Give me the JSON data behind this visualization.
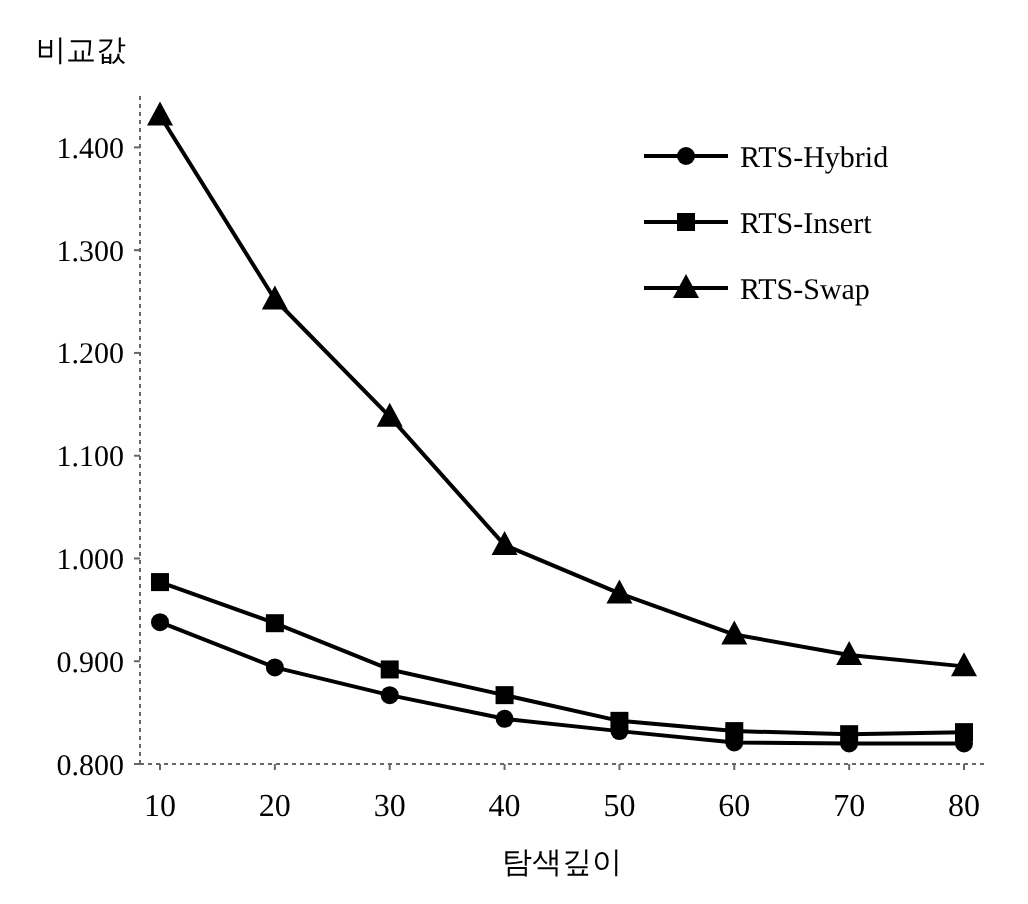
{
  "chart_data": {
    "type": "line",
    "ylabel": "비교값",
    "xlabel": "탐색깊이",
    "categories": [
      "10",
      "20",
      "30",
      "40",
      "50",
      "60",
      "70",
      "80"
    ],
    "series": [
      {
        "name": "RTS-Hybrid",
        "color": "#000000",
        "marker": "circle",
        "values": [
          0.938,
          0.894,
          0.867,
          0.844,
          0.832,
          0.821,
          0.82,
          0.82
        ]
      },
      {
        "name": "RTS-Insert",
        "color": "#000000",
        "marker": "square",
        "values": [
          0.977,
          0.937,
          0.892,
          0.867,
          0.842,
          0.832,
          0.829,
          0.831
        ]
      },
      {
        "name": "RTS-Swap",
        "color": "#000000",
        "marker": "triangle",
        "values": [
          1.431,
          1.252,
          1.138,
          1.013,
          0.966,
          0.926,
          0.906,
          0.895
        ]
      }
    ],
    "ylim": [
      0.8,
      1.45
    ],
    "yticks": [
      {
        "value": 0.8,
        "label": "0.800"
      },
      {
        "value": 0.9,
        "label": "0.900"
      },
      {
        "value": 1.0,
        "label": "1.000"
      },
      {
        "value": 1.1,
        "label": "1.100"
      },
      {
        "value": 1.2,
        "label": "1.200"
      },
      {
        "value": 1.3,
        "label": "1.300"
      },
      {
        "value": 1.4,
        "label": "1.400"
      }
    ],
    "grid": false,
    "legend": "top right",
    "line_style": "solid"
  }
}
